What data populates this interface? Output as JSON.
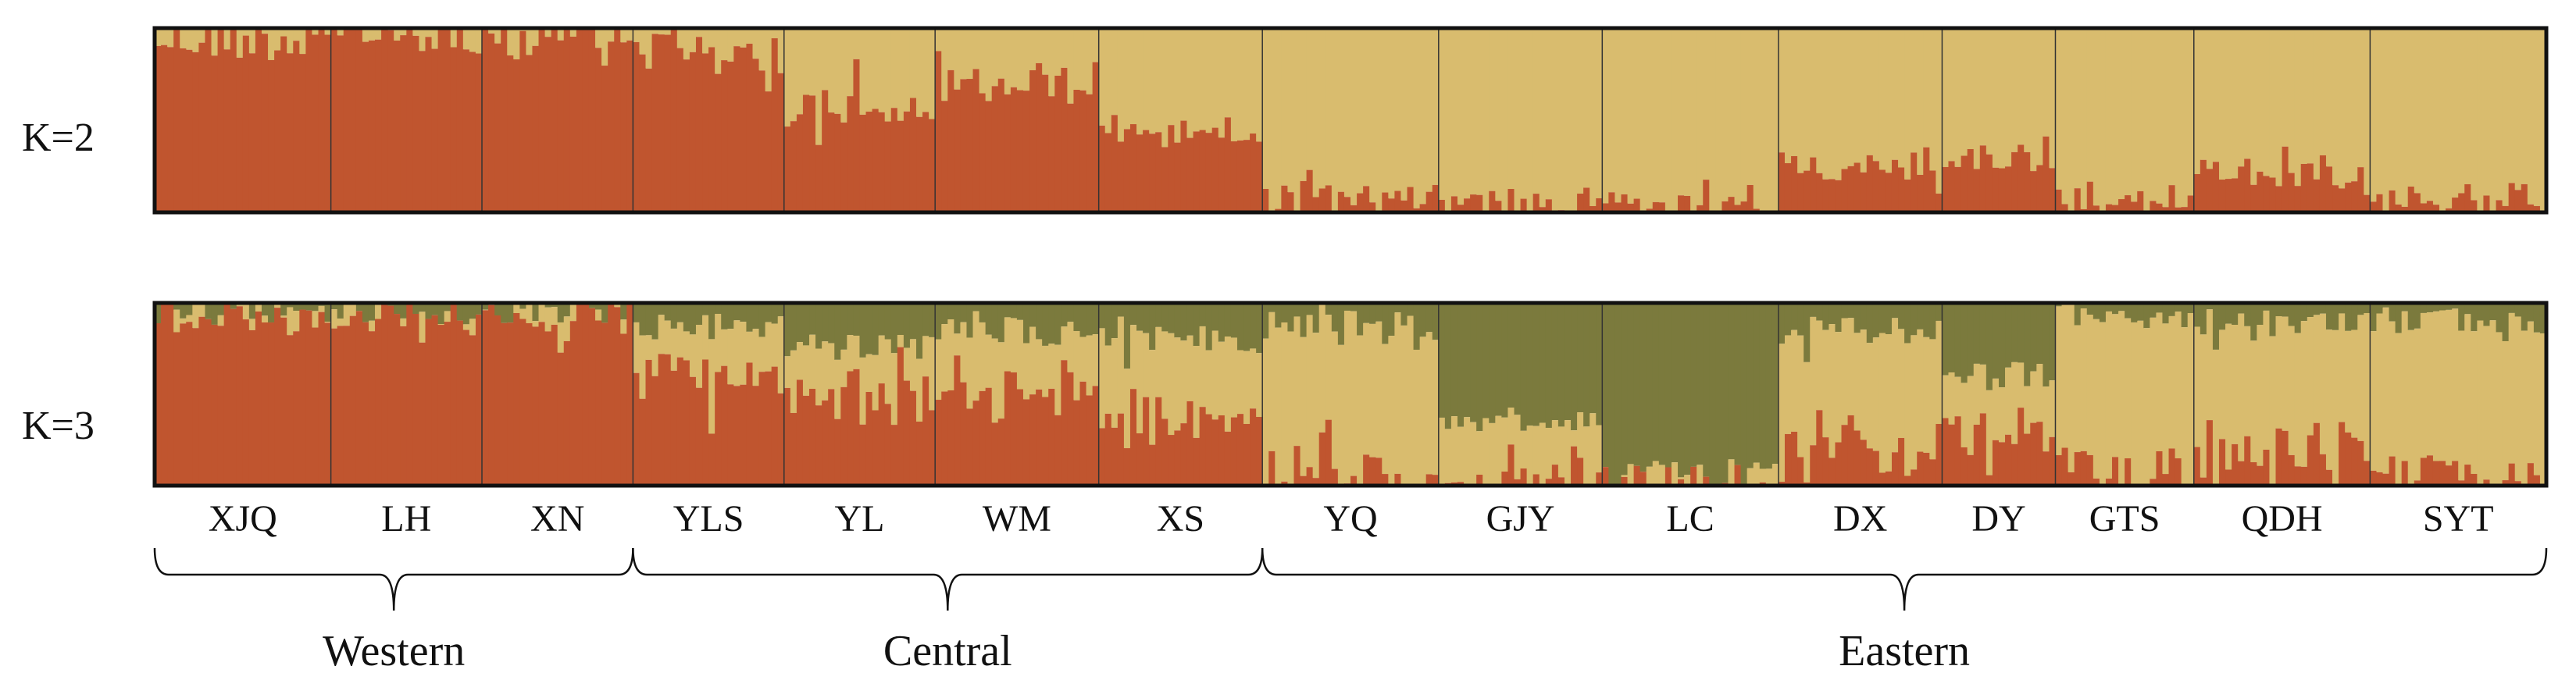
{
  "chart_data": {
    "type": "bar",
    "stacked": true,
    "colors": {
      "cluster1": "#C0552F",
      "cluster2": "#D9BC6E",
      "cluster3": "#7B7A3D"
    },
    "populations": [
      {
        "label": "XJQ",
        "n": 28,
        "k2_cluster2": 0.06,
        "k3_cluster2": 0.04,
        "k3_cluster3": 0.04
      },
      {
        "label": "LH",
        "n": 24,
        "k2_cluster2": 0.02,
        "k3_cluster2": 0.01,
        "k3_cluster3": 0.04
      },
      {
        "label": "XN",
        "n": 24,
        "k2_cluster2": 0.03,
        "k3_cluster2": 0.02,
        "k3_cluster3": 0.04
      },
      {
        "label": "YLS",
        "n": 24,
        "k2_cluster2": 0.15,
        "k3_cluster2": 0.25,
        "k3_cluster3": 0.12
      },
      {
        "label": "YL",
        "n": 24,
        "k2_cluster2": 0.4,
        "k3_cluster2": 0.3,
        "k3_cluster3": 0.25
      },
      {
        "label": "WM",
        "n": 26,
        "k2_cluster2": 0.3,
        "k3_cluster2": 0.35,
        "k3_cluster3": 0.15
      },
      {
        "label": "XS",
        "n": 26,
        "k2_cluster2": 0.55,
        "k3_cluster2": 0.45,
        "k3_cluster3": 0.2
      },
      {
        "label": "YQ",
        "n": 28,
        "k2_cluster2": 0.93,
        "k3_cluster2": 0.82,
        "k3_cluster3": 0.12
      },
      {
        "label": "GJY",
        "n": 26,
        "k2_cluster2": 0.94,
        "k3_cluster2": 0.3,
        "k3_cluster3": 0.65
      },
      {
        "label": "LC",
        "n": 28,
        "k2_cluster2": 0.97,
        "k3_cluster2": 0.02,
        "k3_cluster3": 0.96
      },
      {
        "label": "DX",
        "n": 26,
        "k2_cluster2": 0.75,
        "k3_cluster2": 0.65,
        "k3_cluster3": 0.15
      },
      {
        "label": "DY",
        "n": 18,
        "k2_cluster2": 0.7,
        "k3_cluster2": 0.35,
        "k3_cluster3": 0.4
      },
      {
        "label": "GTS",
        "n": 22,
        "k2_cluster2": 0.93,
        "k3_cluster2": 0.88,
        "k3_cluster3": 0.07
      },
      {
        "label": "QDH",
        "n": 28,
        "k2_cluster2": 0.78,
        "k3_cluster2": 0.7,
        "k3_cluster3": 0.12
      },
      {
        "label": "SYT",
        "n": 28,
        "k2_cluster2": 0.92,
        "k3_cluster2": 0.82,
        "k3_cluster3": 0.1
      }
    ],
    "panels": [
      {
        "label": "K=2"
      },
      {
        "label": "K=3"
      }
    ],
    "groups": [
      {
        "label": "Western",
        "from": 0,
        "to": 2
      },
      {
        "label": "Central",
        "from": 3,
        "to": 6
      },
      {
        "label": "Eastern",
        "from": 7,
        "to": 14
      }
    ]
  }
}
